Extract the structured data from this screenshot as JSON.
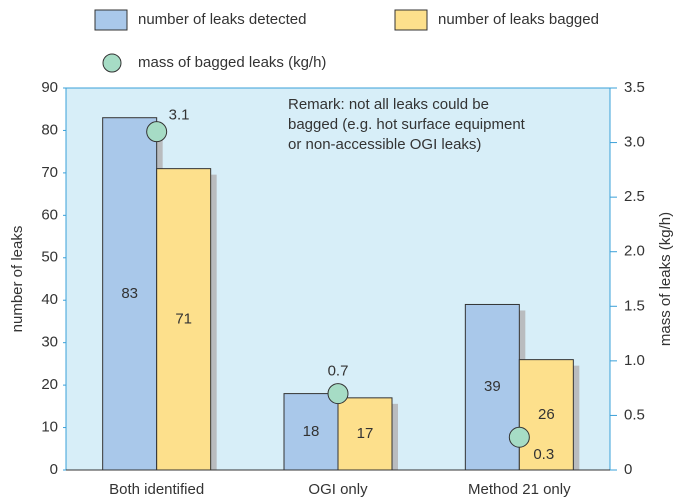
{
  "chart_data": {
    "type": "bar",
    "categories": [
      "Both identified",
      "OGI only",
      "Method 21 only"
    ],
    "series": [
      {
        "name": "number of leaks detected",
        "type": "bar",
        "color": "#a9c8ea",
        "values": [
          83,
          18,
          39
        ]
      },
      {
        "name": "number of leaks bagged",
        "type": "bar",
        "color": "#fde08c",
        "values": [
          71,
          17,
          26
        ]
      },
      {
        "name": "mass of bagged leaks (kg/h)",
        "type": "scatter",
        "axis": "y2",
        "color": "#a6dcc5",
        "values": [
          3.1,
          0.7,
          0.3
        ]
      }
    ],
    "ylabel": "number of leaks",
    "y2label": "mass of leaks (kg/h)",
    "ylim": [
      0,
      90
    ],
    "yticks": [
      0,
      10,
      20,
      30,
      40,
      50,
      60,
      70,
      80,
      90
    ],
    "y2lim": [
      0,
      3.5
    ],
    "y2ticks": [
      0,
      0.5,
      {
        "value": 1,
        "label": "1.0"
      },
      1.5,
      {
        "value": 2,
        "label": "2.0"
      },
      2.5,
      {
        "value": 3,
        "label": "3.0"
      },
      3.5
    ],
    "annotation": [
      "Remark: not all leaks could be",
      "bagged (e.g. hot surface equipment",
      "or non-accessible OGI leaks)"
    ],
    "plot_background": "#d7eef8"
  }
}
